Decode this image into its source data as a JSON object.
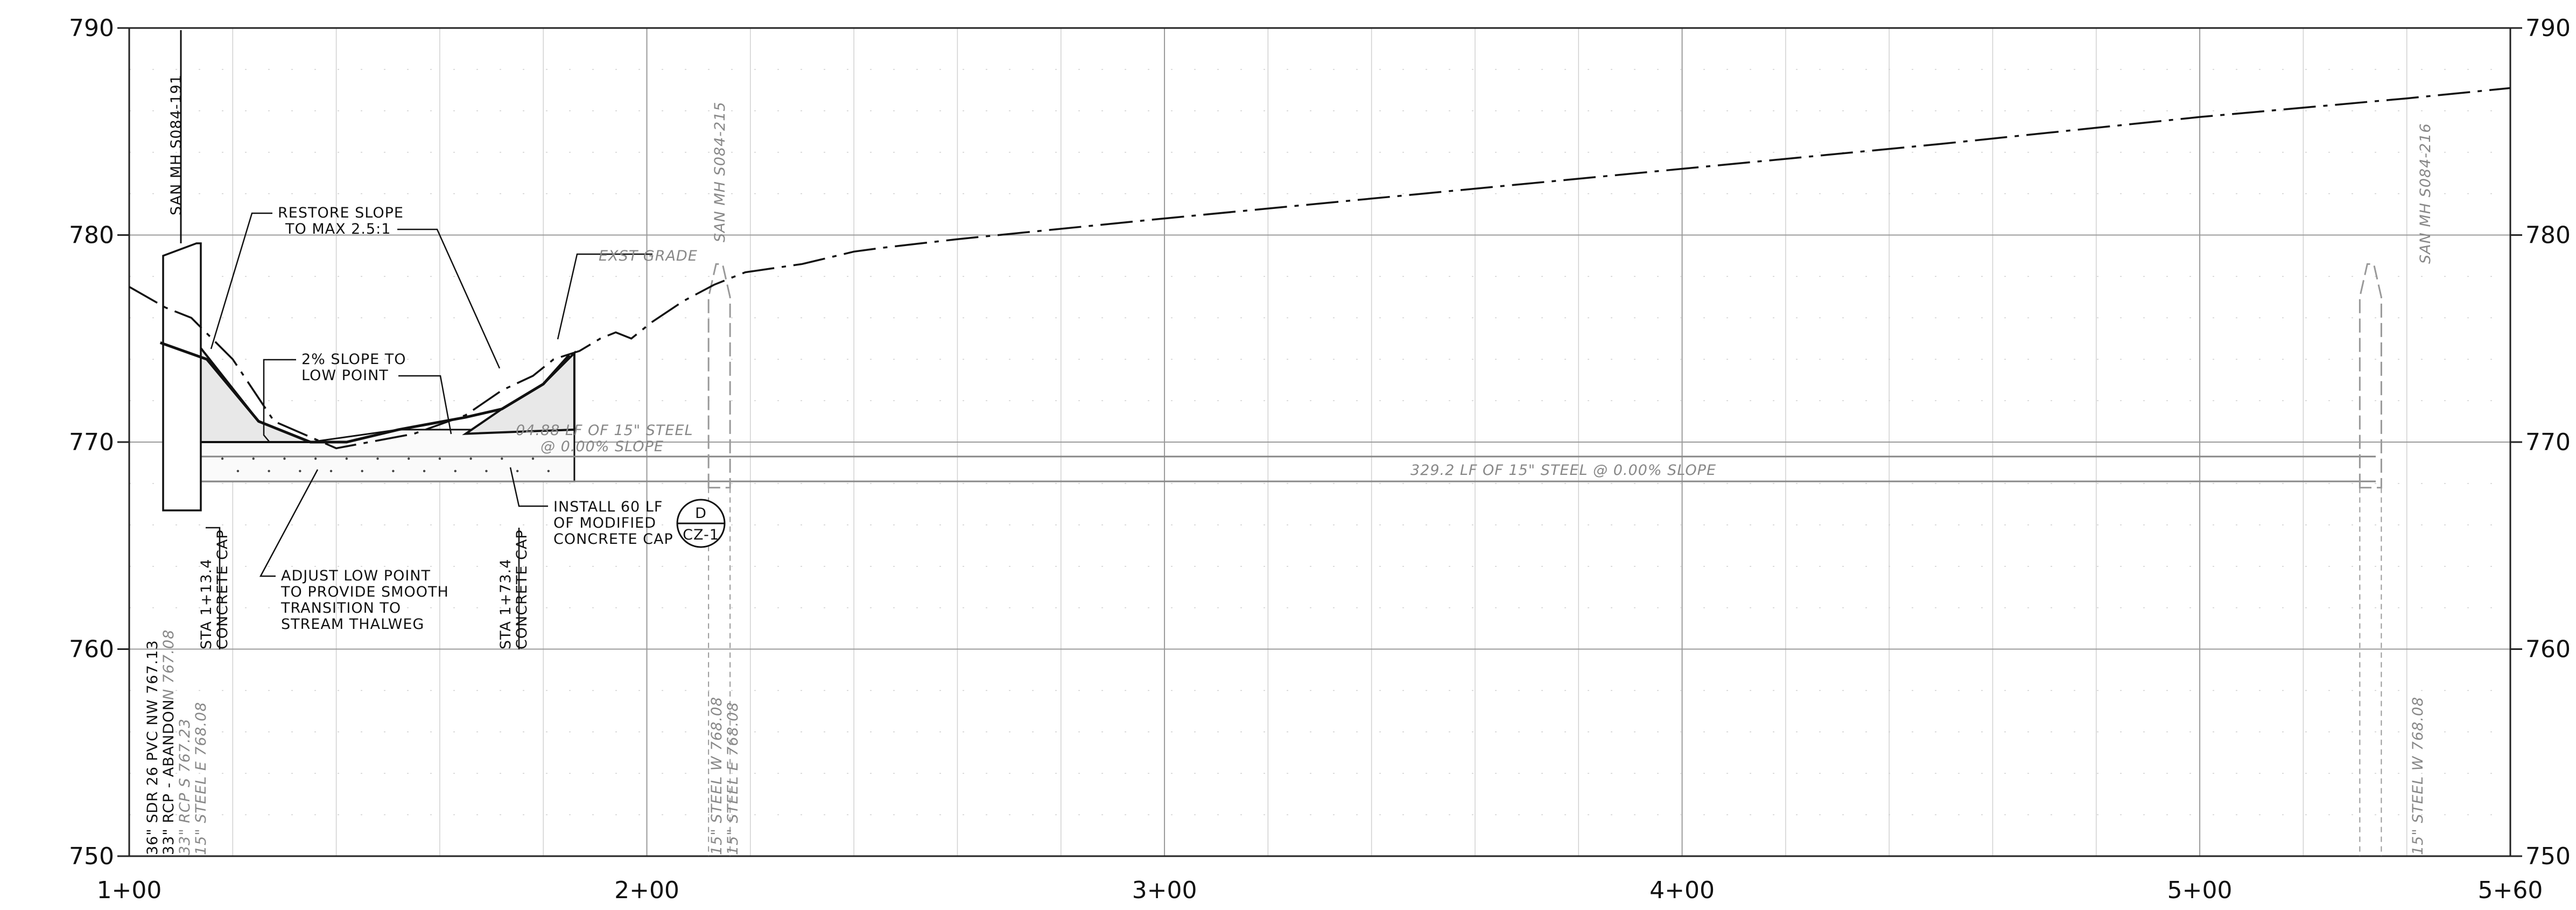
{
  "elevations": [
    {
      "value": 790,
      "label": "790"
    },
    {
      "value": 780,
      "label": "780"
    },
    {
      "value": 770,
      "label": "770"
    },
    {
      "value": 760,
      "label": "760"
    },
    {
      "value": 750,
      "label": "750"
    }
  ],
  "stations": [
    {
      "value": 100,
      "label": "1+00"
    },
    {
      "value": 200,
      "label": "2+00"
    },
    {
      "value": 300,
      "label": "3+00"
    },
    {
      "value": 400,
      "label": "4+00"
    },
    {
      "value": 500,
      "label": "5+00"
    },
    {
      "value": 560,
      "label": "5+60"
    }
  ],
  "minor_station_step": 20,
  "elev_range": [
    750,
    790
  ],
  "station_range": [
    100,
    560
  ],
  "existing_grade_label": "EXST GRADE",
  "proposed_grade_points": [
    [
      106,
      774.8
    ],
    [
      115,
      774
    ],
    [
      125,
      771
    ],
    [
      135,
      770
    ],
    [
      142,
      770
    ],
    [
      152,
      770.6
    ],
    [
      165,
      771.2
    ],
    [
      172,
      771.6
    ],
    [
      180,
      772.8
    ],
    [
      185,
      774.2
    ]
  ],
  "existing_grade_points": [
    [
      100,
      777.5
    ],
    [
      107,
      776.5
    ],
    [
      112,
      776
    ],
    [
      120,
      774
    ],
    [
      128,
      771
    ],
    [
      140,
      769.7
    ],
    [
      155,
      770.4
    ],
    [
      165,
      771.3
    ],
    [
      172,
      772.5
    ],
    [
      178,
      773.2
    ],
    [
      182,
      774
    ],
    [
      187,
      774.4
    ],
    [
      191,
      775
    ],
    [
      194,
      775.3
    ],
    [
      197,
      775
    ],
    [
      201,
      775.8
    ],
    [
      207,
      776.8
    ],
    [
      213,
      777.6
    ],
    [
      219,
      778.2
    ],
    [
      230,
      778.6
    ],
    [
      240,
      779.2
    ],
    [
      246,
      779.4
    ],
    [
      260,
      779.8
    ],
    [
      300,
      780.8
    ],
    [
      350,
      782
    ],
    [
      400,
      783.2
    ],
    [
      450,
      784.4
    ],
    [
      500,
      785.7
    ],
    [
      540,
      786.6
    ],
    [
      560,
      787.1
    ]
  ],
  "manholes": [
    {
      "label": "SAN MH S084-191",
      "station": 113,
      "dashed": false
    },
    {
      "label": "SAN MH S084-215",
      "station": 214,
      "dashed": true
    },
    {
      "label": "SAN MH S084-216",
      "station": 533,
      "dashed": true
    }
  ],
  "pipes": {
    "label_short_1": "04.88 LF OF 15\" STEEL",
    "label_short_2": "@ 0.00% SLOPE",
    "label_long": "329.2 LF OF 15\" STEEL @ 0.00% SLOPE",
    "invert_top": 769.3,
    "invert_bottom": 768.1
  },
  "notes": {
    "restore_slope_1": "RESTORE SLOPE",
    "restore_slope_2": "TO MAX 2.5:1",
    "slope_to_low_1": "2% SLOPE TO",
    "slope_to_low_2": "LOW POINT",
    "install_cap_1": "INSTALL 60 LF",
    "install_cap_2": "OF MODIFIED",
    "install_cap_3": "CONCRETE CAP",
    "adjust_1": "ADJUST LOW POINT",
    "adjust_2": "TO PROVIDE SMOOTH",
    "adjust_3": "TRANSITION TO",
    "adjust_4": "STREAM THALWEG",
    "detail_top": "D",
    "detail_bottom": "CZ-1"
  },
  "vertical_labels": {
    "cap_start_sta": "STA 1+13.4",
    "cap_start_name": "CONCRETE CAP",
    "cap_end_sta": "STA 1+73.4",
    "cap_end_name": "CONCRETE CAP",
    "mh191_line1": "36\" SDR 26 PVC NW 767.13",
    "mh191_line2": "33\" RCP - ABANDON",
    "mh191_line2b": "N 767.08",
    "mh191_line3": "33\" RCP S 767.23",
    "mh191_line4": "15\" STEEL E 768.08",
    "mh215_line1": "15\" STEEL W 768.08",
    "mh215_line2": "15\" STEEL E 768.08",
    "mh216_line1": "15\" STEEL W 768.08"
  }
}
